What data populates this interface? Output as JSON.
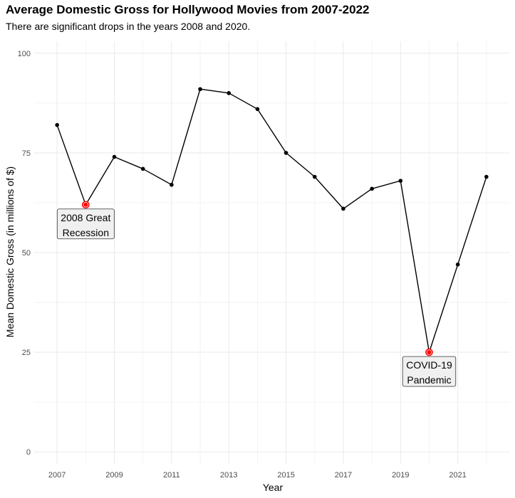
{
  "chart_data": {
    "type": "line",
    "title": "Average Domestic Gross for Hollywood Movies from 2007-2022",
    "subtitle": "There are significant drops in the years 2008 and 2020.",
    "xlabel": "Year",
    "ylabel": "Mean Domestic Gross (in millions of $)",
    "x": [
      2007,
      2008,
      2009,
      2010,
      2011,
      2012,
      2013,
      2014,
      2015,
      2016,
      2017,
      2018,
      2019,
      2020,
      2021,
      2022
    ],
    "series": [
      {
        "values": [
          82,
          62,
          74,
          71,
          67,
          91,
          90,
          86,
          75,
          69,
          61,
          66,
          68,
          25,
          47,
          69
        ]
      }
    ],
    "xlim": [
      2006.2,
      2022.8
    ],
    "ylim": [
      -3,
      103
    ],
    "x_ticks": [
      2007,
      2009,
      2011,
      2013,
      2015,
      2017,
      2019,
      2021
    ],
    "x_tick_labels": [
      "2007",
      "2009",
      "2011",
      "2013",
      "2015",
      "2017",
      "2019",
      "2021"
    ],
    "y_ticks": [
      0,
      25,
      50,
      75,
      100
    ],
    "y_tick_labels": [
      "0",
      "25",
      "50",
      "75",
      "100"
    ],
    "grid": true,
    "highlight_color": "#ff0000",
    "line_color": "#000000",
    "annotations": [
      {
        "x": 2008,
        "y": 62,
        "lines": [
          "2008 Great",
          "Recession"
        ]
      },
      {
        "x": 2020,
        "y": 25,
        "lines": [
          "COVID-19",
          "Pandemic"
        ]
      }
    ]
  }
}
